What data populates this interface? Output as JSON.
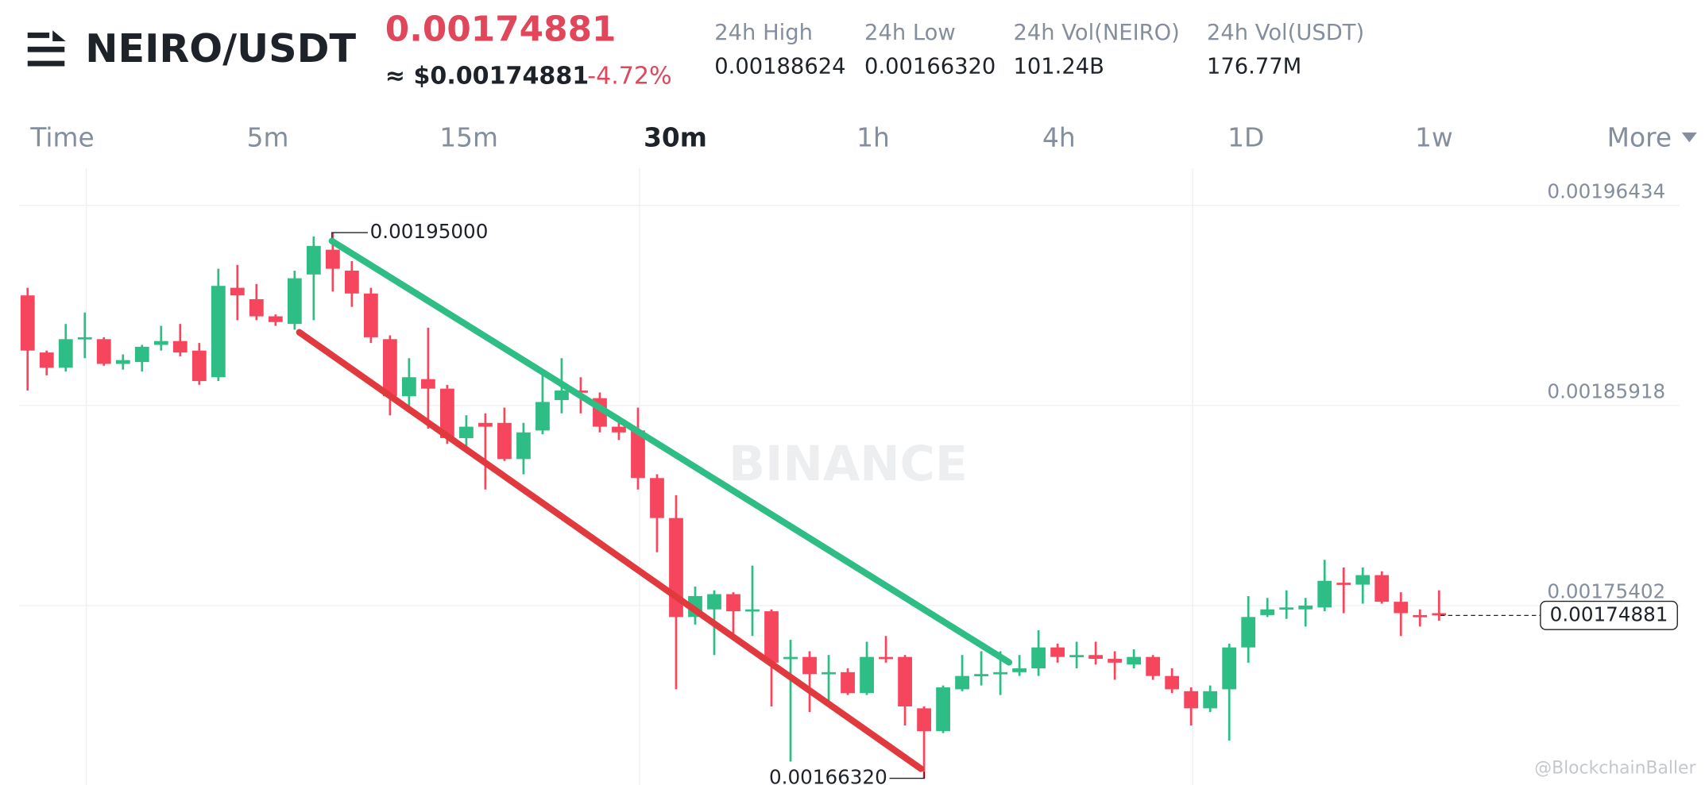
{
  "header": {
    "pair": "NEIRO/USDT",
    "price": "0.00174881",
    "price_usd": "≈ $0.00174881",
    "change": "-4.72%",
    "stats": [
      {
        "label": "24h High",
        "value": "0.00188624"
      },
      {
        "label": "24h Low",
        "value": "0.00166320"
      },
      {
        "label": "24h Vol(NEIRO)",
        "value": "101.24B"
      },
      {
        "label": "24h Vol(USDT)",
        "value": "176.77M"
      }
    ]
  },
  "timeframes": [
    "Time",
    "5m",
    "15m",
    "30m",
    "1h",
    "4h",
    "1D",
    "1w",
    "More"
  ],
  "watermark": "BINANCE",
  "credit": "@BlockchainBaller",
  "chart_data": {
    "type": "candlestick",
    "open": [
      0.001917,
      0.001887,
      0.001879,
      0.001894,
      0.001894,
      0.001881,
      0.001882,
      0.001891,
      0.001893,
      0.001888,
      0.001874,
      0.001921,
      0.001915,
      0.001906,
      0.001902,
      0.001928,
      0.001941,
      0.00193,
      0.001918,
      0.001894,
      0.001864,
      0.001873,
      0.001868,
      0.001842,
      0.00185,
      0.00185,
      0.001831,
      0.001846,
      0.001862,
      0.001867,
      0.001863,
      0.001848,
      0.001846,
      0.001821,
      0.0018,
      0.001748,
      0.001752,
      0.00176,
      0.001751,
      0.001751,
      0.001726,
      0.001727,
      0.001718,
      0.001719,
      0.001708,
      0.001727,
      0.001727,
      0.0017,
      0.001688,
      0.00171,
      0.001717,
      0.001718,
      0.001719,
      0.001721,
      0.001732,
      0.001727,
      0.001728,
      0.001726,
      0.001723,
      0.001727,
      0.001717,
      0.001709,
      0.0017,
      0.00171,
      0.001732,
      0.001749,
      0.001752,
      0.001752,
      0.001753,
      0.001766,
      0.001765,
      0.00177,
      0.001756,
      0.001749,
      0.00175
    ],
    "high": [
      0.001921,
      0.001888,
      0.001902,
      0.001908,
      0.001895,
      0.001886,
      0.001891,
      0.001901,
      0.001902,
      0.001892,
      0.001931,
      0.001933,
      0.001923,
      0.001907,
      0.00193,
      0.001948,
      0.00195,
      0.001935,
      0.001921,
      0.001896,
      0.001884,
      0.0019,
      0.00187,
      0.001854,
      0.001855,
      0.001858,
      0.00185,
      0.001877,
      0.001884,
      0.001874,
      0.001866,
      0.001852,
      0.001858,
      0.001823,
      0.001812,
      0.001764,
      0.001762,
      0.001761,
      0.001775,
      0.001752,
      0.001736,
      0.00173,
      0.001728,
      0.001721,
      0.001735,
      0.001738,
      0.001728,
      0.001701,
      0.001712,
      0.001728,
      0.00173,
      0.00173,
      0.001728,
      0.001741,
      0.001734,
      0.001735,
      0.001735,
      0.00173,
      0.001731,
      0.001728,
      0.001721,
      0.001711,
      0.001712,
      0.001734,
      0.001759,
      0.001758,
      0.001762,
      0.001758,
      0.001778,
      0.001774,
      0.001774,
      0.001772,
      0.001761,
      0.001752,
      0.001762
    ],
    "low": [
      0.001867,
      0.001875,
      0.001877,
      0.001884,
      0.00188,
      0.001878,
      0.001877,
      0.001888,
      0.001885,
      0.00187,
      0.001872,
      0.001904,
      0.001904,
      0.001901,
      0.001899,
      0.001904,
      0.001919,
      0.001911,
      0.001892,
      0.001854,
      0.001856,
      0.001847,
      0.001839,
      0.001837,
      0.001815,
      0.00183,
      0.001823,
      0.001844,
      0.001855,
      0.001855,
      0.001845,
      0.001841,
      0.001815,
      0.001782,
      0.00171,
      0.001744,
      0.001728,
      0.001738,
      0.001738,
      0.001701,
      0.001672,
      0.001698,
      0.001702,
      0.001707,
      0.001707,
      0.001724,
      0.001691,
      0.0016632,
      0.001687,
      0.001709,
      0.001712,
      0.001707,
      0.001717,
      0.001717,
      0.001724,
      0.001721,
      0.001723,
      0.001715,
      0.001721,
      0.001715,
      0.001708,
      0.001691,
      0.001698,
      0.001683,
      0.001724,
      0.001748,
      0.001747,
      0.001743,
      0.001751,
      0.00175,
      0.001755,
      0.001755,
      0.001738,
      0.001743,
      0.001746
    ],
    "close": [
      0.001888,
      0.001879,
      0.001894,
      0.001895,
      0.001881,
      0.001883,
      0.00189,
      0.001893,
      0.001887,
      0.001872,
      0.001922,
      0.001917,
      0.001906,
      0.001903,
      0.001926,
      0.001943,
      0.001931,
      0.001918,
      0.001895,
      0.001864,
      0.001874,
      0.001868,
      0.001842,
      0.001848,
      0.001848,
      0.001831,
      0.001845,
      0.001861,
      0.001867,
      0.001866,
      0.001848,
      0.001845,
      0.001821,
      0.0018,
      0.001748,
      0.001759,
      0.00176,
      0.001751,
      0.001752,
      0.001724,
      0.001727,
      0.001718,
      0.001719,
      0.001708,
      0.001727,
      0.001726,
      0.001701,
      0.001688,
      0.001711,
      0.001717,
      0.001718,
      0.001719,
      0.001721,
      0.001732,
      0.001727,
      0.001728,
      0.001726,
      0.001724,
      0.001727,
      0.001717,
      0.00171,
      0.0017,
      0.001709,
      0.001732,
      0.001748,
      0.001752,
      0.001753,
      0.001754,
      0.001767,
      0.001765,
      0.00177,
      0.001756,
      0.00175,
      0.001748,
      0.001749
    ],
    "up_color": "#2ebd85",
    "down_color": "#f6465d",
    "ylim": [
      0.0016597,
      0.0019838
    ],
    "yticks": [
      0.00175402,
      0.00185918,
      0.00196434
    ],
    "grid": true,
    "current_price": 0.00174881,
    "annotations": [
      {
        "value": 0.00195,
        "label": "0.00195000"
      },
      {
        "value": 0.0016632,
        "label": "0.00166320"
      }
    ]
  }
}
